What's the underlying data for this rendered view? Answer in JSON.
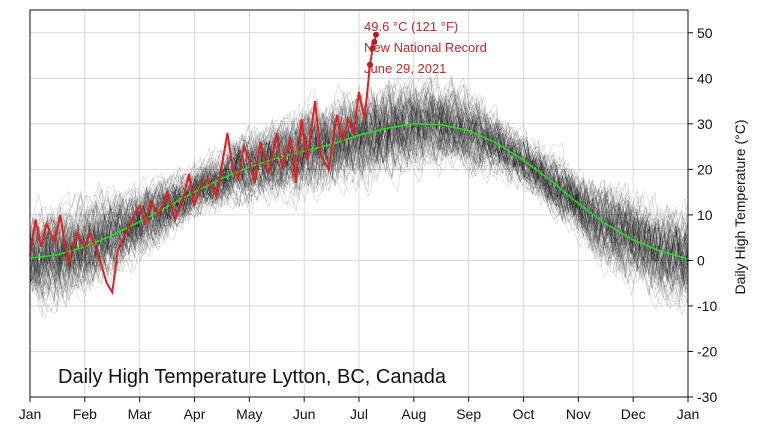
{
  "chart_data": {
    "type": "line",
    "title": "Daily High Temperature Lytton, BC, Canada",
    "ylabel": "Daily High Temperature (°C)",
    "ylim": [
      -30,
      55
    ],
    "yticks": [
      -30,
      -20,
      -10,
      0,
      10,
      20,
      30,
      40,
      50
    ],
    "xticks": [
      "Jan",
      "Feb",
      "Mar",
      "Apr",
      "May",
      "Jun",
      "Jul",
      "Aug",
      "Sep",
      "Oct",
      "Nov",
      "Dec",
      "Jan"
    ],
    "xunit": "month (0 = Jan 1, 12 = Dec 31)",
    "xlim": [
      0,
      12
    ],
    "grid": true,
    "annotation": {
      "lines": [
        "49.6 °C (121 °F)",
        "New National Record",
        "June 29, 2021"
      ]
    },
    "series": [
      {
        "role": "climatological mean",
        "color": "#22dd22",
        "points": [
          [
            0,
            0.5
          ],
          [
            0.5,
            1.2
          ],
          [
            1,
            3
          ],
          [
            1.5,
            5.5
          ],
          [
            2,
            8.5
          ],
          [
            2.5,
            11.8
          ],
          [
            3,
            15
          ],
          [
            3.5,
            18
          ],
          [
            4,
            20.5
          ],
          [
            4.5,
            22.5
          ],
          [
            5,
            24
          ],
          [
            5.5,
            25.5
          ],
          [
            6,
            27.5
          ],
          [
            6.5,
            29
          ],
          [
            7,
            30
          ],
          [
            7.5,
            29.8
          ],
          [
            8,
            28.5
          ],
          [
            8.5,
            25.8
          ],
          [
            9,
            22
          ],
          [
            9.5,
            17.5
          ],
          [
            10,
            12.5
          ],
          [
            10.5,
            8
          ],
          [
            11,
            4.5
          ],
          [
            11.5,
            2
          ],
          [
            12,
            0.3
          ]
        ]
      },
      {
        "role": "2021",
        "color": "#dd2222",
        "points": [
          [
            0,
            1
          ],
          [
            0.1,
            9
          ],
          [
            0.2,
            3
          ],
          [
            0.3,
            8
          ],
          [
            0.45,
            4
          ],
          [
            0.55,
            10
          ],
          [
            0.7,
            -1
          ],
          [
            0.85,
            6
          ],
          [
            1,
            3
          ],
          [
            1.1,
            6
          ],
          [
            1.25,
            1
          ],
          [
            1.4,
            -5
          ],
          [
            1.5,
            -7
          ],
          [
            1.6,
            2
          ],
          [
            1.75,
            6
          ],
          [
            1.9,
            10
          ],
          [
            2,
            12
          ],
          [
            2.1,
            8
          ],
          [
            2.2,
            13
          ],
          [
            2.35,
            10
          ],
          [
            2.5,
            15
          ],
          [
            2.65,
            9
          ],
          [
            2.8,
            14
          ],
          [
            2.9,
            19
          ],
          [
            3,
            12
          ],
          [
            3.1,
            16
          ],
          [
            3.25,
            18
          ],
          [
            3.4,
            14
          ],
          [
            3.5,
            21
          ],
          [
            3.6,
            28
          ],
          [
            3.7,
            20
          ],
          [
            3.8,
            18
          ],
          [
            3.9,
            25
          ],
          [
            4,
            22
          ],
          [
            4.1,
            17
          ],
          [
            4.2,
            26
          ],
          [
            4.35,
            19
          ],
          [
            4.5,
            28
          ],
          [
            4.6,
            20
          ],
          [
            4.75,
            27
          ],
          [
            4.85,
            17
          ],
          [
            4.95,
            31
          ],
          [
            5.05,
            22
          ],
          [
            5.2,
            35
          ],
          [
            5.3,
            23
          ],
          [
            5.45,
            20
          ],
          [
            5.6,
            32
          ],
          [
            5.7,
            26
          ],
          [
            5.8,
            31
          ],
          [
            5.9,
            28
          ],
          [
            6,
            37
          ],
          [
            6.1,
            31
          ],
          [
            6.2,
            43
          ],
          [
            6.25,
            46.6
          ],
          [
            6.28,
            48
          ],
          [
            6.31,
            49.6
          ]
        ]
      }
    ]
  }
}
